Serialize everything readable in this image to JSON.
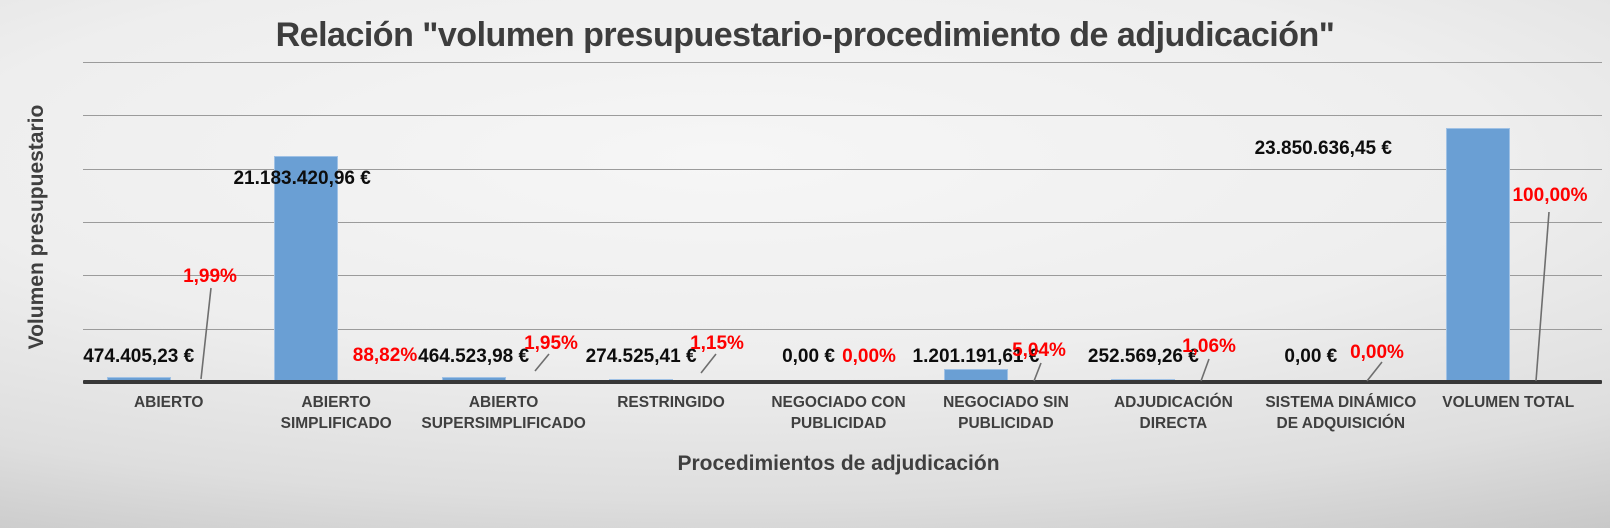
{
  "chart_data": {
    "type": "bar",
    "title": "Relación \"volumen presupuestario-procedimiento de adjudicación\"",
    "xlabel": "Procedimientos de adjudicación",
    "ylabel": "Volumen presupuestario",
    "ylim": [
      0,
      30000000
    ],
    "gridline_interval": 5000000,
    "grid": true,
    "legend_position": "none",
    "y_tick_labels_visible": false,
    "bar_color": "#6a9fd4",
    "value_label_color": "#0d0d0d",
    "percent_label_color": "#fe0000",
    "categories": [
      [
        "ABIERTO"
      ],
      [
        "ABIERTO",
        "SIMPLIFICADO"
      ],
      [
        "ABIERTO",
        "SUPERSIMPLIFICADO"
      ],
      [
        "RESTRINGIDO"
      ],
      [
        "NEGOCIADO CON",
        "PUBLICIDAD"
      ],
      [
        "NEGOCIADO SIN",
        "PUBLICIDAD"
      ],
      [
        "ADJUDICACIÓN",
        "DIRECTA"
      ],
      [
        "SISTEMA DINÁMICO",
        "DE ADQUISICIÓN"
      ],
      [
        "VOLUMEN TOTAL"
      ]
    ],
    "values": [
      474405.23,
      21183420.96,
      464523.98,
      274525.41,
      0.0,
      1201191.61,
      252569.26,
      0.0,
      23850636.45
    ],
    "value_labels": [
      "474.405,23 €",
      "21.183.420,96 €",
      "464.523,98 €",
      "274.525,41 €",
      "0,00 €",
      "1.201.191,61 €",
      "252.569,26 €",
      "0,00 €",
      "23.850.636,45 €"
    ],
    "percentages": [
      1.99,
      88.82,
      1.95,
      1.15,
      0.0,
      5.04,
      1.06,
      0.0,
      100.0
    ],
    "percentage_labels": [
      "1,99%",
      "88,82%",
      "1,95%",
      "1,15%",
      "0,00%",
      "5,04%",
      "1,06%",
      "0,00%",
      "100,00%"
    ]
  }
}
